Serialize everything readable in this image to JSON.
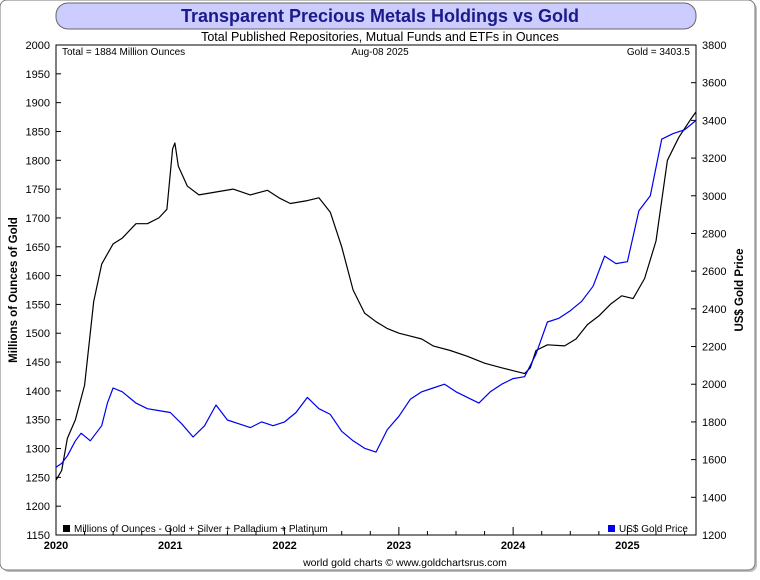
{
  "chart_data": {
    "type": "line",
    "title": "Transparent Precious Metals Holdings vs Gold",
    "subtitle": "Total Published Repositories, Mutual Funds and ETFs in Ounces",
    "annotations": {
      "total": "Total = 1884 Million Ounces",
      "date": "Aug-08  2025",
      "gold": "Gold = 3403.5"
    },
    "ylabel_left": "Millions of Ounces of Gold",
    "ylabel_right": "US$ Gold Price",
    "footer": "world gold charts © www.goldchartsrus.com",
    "xlim": [
      2020.0,
      2025.6
    ],
    "ylim_left": [
      1150,
      2000
    ],
    "ylim_right": [
      1200,
      3800
    ],
    "x_ticks": [
      2020,
      2021,
      2022,
      2023,
      2024,
      2025
    ],
    "x_tick_labels": [
      "2020",
      "2021",
      "2022",
      "2023",
      "2024",
      "2025"
    ],
    "y_ticks_left": [
      1150,
      1200,
      1250,
      1300,
      1350,
      1400,
      1450,
      1500,
      1550,
      1600,
      1650,
      1700,
      1750,
      1800,
      1850,
      1900,
      1950,
      2000
    ],
    "y_ticks_right": [
      1200,
      1400,
      1600,
      1800,
      2000,
      2200,
      2400,
      2600,
      2800,
      3000,
      3200,
      3400,
      3600,
      3800
    ],
    "legend": {
      "holdings": "Millions of Ounces - Gold + Silver + Palladium + Platinum",
      "gold": "US$ Gold Price"
    },
    "series": [
      {
        "name": "Millions of Ounces - Gold + Silver + Palladium + Platinum",
        "axis": "left",
        "color": "#000000",
        "x": [
          2020.0,
          2020.05,
          2020.1,
          2020.17,
          2020.25,
          2020.33,
          2020.4,
          2020.5,
          2020.58,
          2020.7,
          2020.8,
          2020.9,
          2020.97,
          2021.02,
          2021.04,
          2021.07,
          2021.15,
          2021.25,
          2021.4,
          2021.55,
          2021.7,
          2021.85,
          2021.95,
          2022.05,
          2022.2,
          2022.3,
          2022.4,
          2022.5,
          2022.6,
          2022.7,
          2022.8,
          2022.9,
          2023.0,
          2023.1,
          2023.2,
          2023.3,
          2023.45,
          2023.6,
          2023.75,
          2023.9,
          2024.0,
          2024.1,
          2024.15,
          2024.2,
          2024.3,
          2024.45,
          2024.55,
          2024.65,
          2024.75,
          2024.85,
          2024.95,
          2025.05,
          2025.15,
          2025.25,
          2025.35,
          2025.45,
          2025.55,
          2025.6
        ],
        "values": [
          1245,
          1262,
          1318,
          1350,
          1410,
          1555,
          1620,
          1655,
          1665,
          1690,
          1690,
          1700,
          1715,
          1820,
          1830,
          1790,
          1755,
          1740,
          1745,
          1750,
          1740,
          1748,
          1735,
          1725,
          1730,
          1735,
          1710,
          1650,
          1575,
          1535,
          1520,
          1508,
          1500,
          1495,
          1490,
          1478,
          1470,
          1460,
          1448,
          1440,
          1435,
          1430,
          1440,
          1470,
          1480,
          1478,
          1490,
          1515,
          1530,
          1550,
          1565,
          1560,
          1595,
          1660,
          1800,
          1840,
          1870,
          1884
        ]
      },
      {
        "name": "US$ Gold Price",
        "axis": "right",
        "color": "#0000ee",
        "x": [
          2020.0,
          2020.05,
          2020.1,
          2020.17,
          2020.22,
          2020.3,
          2020.4,
          2020.45,
          2020.5,
          2020.58,
          2020.7,
          2020.8,
          2020.9,
          2021.0,
          2021.1,
          2021.2,
          2021.3,
          2021.4,
          2021.5,
          2021.6,
          2021.7,
          2021.8,
          2021.9,
          2022.0,
          2022.1,
          2022.2,
          2022.3,
          2022.4,
          2022.5,
          2022.6,
          2022.7,
          2022.8,
          2022.9,
          2023.0,
          2023.1,
          2023.2,
          2023.3,
          2023.4,
          2023.5,
          2023.6,
          2023.7,
          2023.8,
          2023.9,
          2024.0,
          2024.1,
          2024.2,
          2024.3,
          2024.4,
          2024.5,
          2024.6,
          2024.7,
          2024.8,
          2024.9,
          2025.0,
          2025.1,
          2025.2,
          2025.3,
          2025.4,
          2025.5,
          2025.6
        ],
        "values": [
          1560,
          1580,
          1620,
          1700,
          1740,
          1700,
          1780,
          1900,
          1980,
          1960,
          1900,
          1870,
          1860,
          1850,
          1790,
          1720,
          1780,
          1890,
          1810,
          1790,
          1770,
          1800,
          1780,
          1800,
          1850,
          1930,
          1870,
          1840,
          1750,
          1700,
          1660,
          1640,
          1760,
          1830,
          1920,
          1960,
          1980,
          2000,
          1960,
          1930,
          1900,
          1960,
          2000,
          2030,
          2040,
          2160,
          2330,
          2350,
          2390,
          2440,
          2520,
          2680,
          2640,
          2650,
          2920,
          3000,
          3300,
          3330,
          3350,
          3400
        ]
      }
    ]
  }
}
